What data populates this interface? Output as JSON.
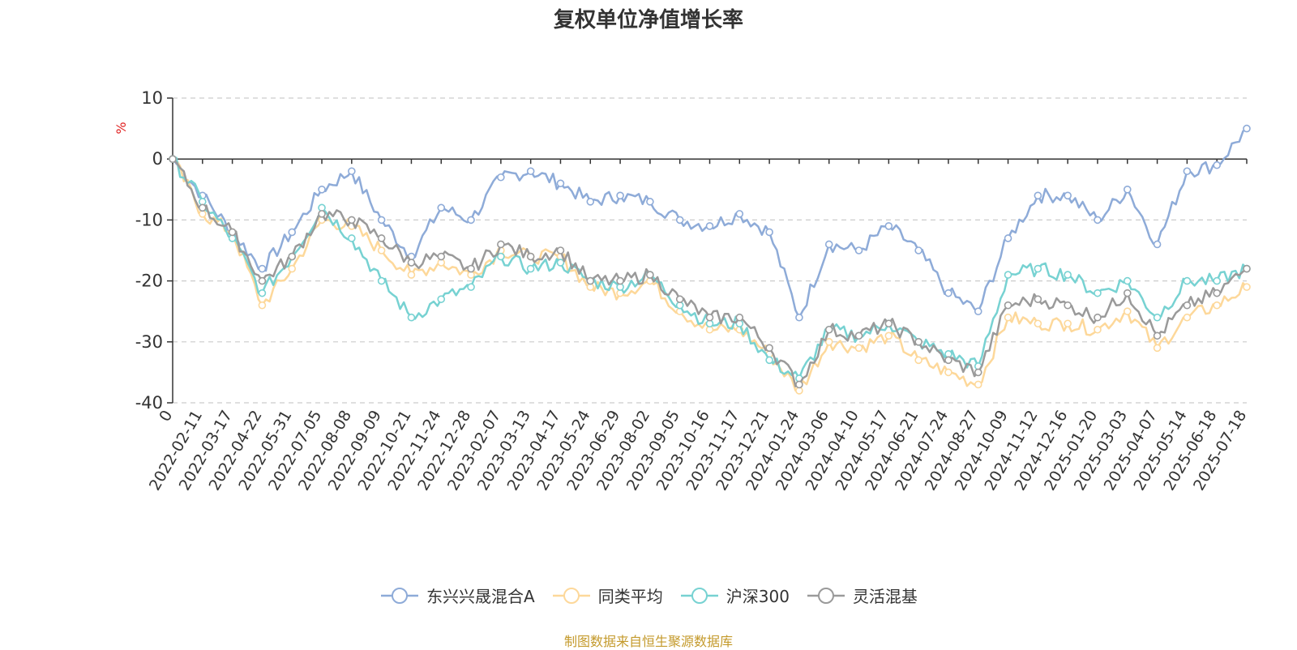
{
  "chart_data": {
    "type": "line",
    "title": "复权单位净值增长率",
    "ylabel": "%",
    "ylim": [
      -40,
      10
    ],
    "yticks": [
      10,
      0,
      -10,
      -20,
      -30,
      -40
    ],
    "grid": true,
    "legend_position": "bottom",
    "x_tick_labels": [
      "0",
      "2022-02-11",
      "2022-03-17",
      "2022-04-22",
      "2022-05-31",
      "2022-07-05",
      "2022-08-08",
      "2022-09-09",
      "2022-10-21",
      "2022-11-24",
      "2022-12-28",
      "2023-02-07",
      "2023-03-13",
      "2023-04-17",
      "2023-05-24",
      "2023-06-29",
      "2023-08-02",
      "2023-09-05",
      "2023-10-16",
      "2023-11-17",
      "2023-12-21",
      "2024-01-24",
      "2024-03-06",
      "2024-04-10",
      "2024-05-17",
      "2024-06-21",
      "2024-07-24",
      "2024-08-27",
      "2024-10-09",
      "2024-11-12",
      "2024-12-16",
      "2025-01-20",
      "2025-03-03",
      "2025-04-07",
      "2025-05-14",
      "2025-06-18",
      "2025-07-18"
    ],
    "series": [
      {
        "name": "东兴兴晟混合A",
        "color": "#8eabd8",
        "values": [
          0,
          -6,
          -12,
          -18,
          -12,
          -5,
          -2,
          -10,
          -16,
          -8,
          -10,
          -3,
          -2,
          -4,
          -7,
          -6,
          -7,
          -10,
          -11,
          -9,
          -12,
          -26,
          -14,
          -15,
          -11,
          -15,
          -22,
          -25,
          -13,
          -6,
          -6,
          -10,
          -5,
          -14,
          -2,
          -1,
          5
        ]
      },
      {
        "name": "同类平均",
        "color": "#fdd89a",
        "values": [
          0,
          -9,
          -12,
          -24,
          -18,
          -10,
          -11,
          -15,
          -19,
          -17,
          -19,
          -15,
          -16,
          -16,
          -21,
          -22,
          -20,
          -25,
          -28,
          -28,
          -32,
          -38,
          -30,
          -31,
          -29,
          -33,
          -35,
          -37,
          -26,
          -27,
          -27,
          -28,
          -25,
          -31,
          -26,
          -24,
          -21
        ]
      },
      {
        "name": "沪深300",
        "color": "#77d2d2",
        "values": [
          0,
          -7,
          -13,
          -22,
          -16,
          -8,
          -13,
          -20,
          -26,
          -23,
          -21,
          -16,
          -18,
          -17,
          -20,
          -21,
          -19,
          -24,
          -27,
          -27,
          -33,
          -36,
          -28,
          -29,
          -27,
          -30,
          -32,
          -34,
          -19,
          -18,
          -19,
          -22,
          -20,
          -26,
          -20,
          -20,
          -18
        ]
      },
      {
        "name": "灵活混基",
        "color": "#9a9a9a",
        "values": [
          0,
          -8,
          -12,
          -20,
          -16,
          -9,
          -10,
          -13,
          -17,
          -16,
          -18,
          -14,
          -16,
          -15,
          -20,
          -20,
          -19,
          -23,
          -26,
          -26,
          -31,
          -37,
          -28,
          -29,
          -27,
          -30,
          -33,
          -35,
          -24,
          -23,
          -24,
          -26,
          -22,
          -29,
          -24,
          -22,
          -18
        ]
      }
    ]
  },
  "footer": {
    "source_text": "制图数据来自恒生聚源数据库"
  }
}
